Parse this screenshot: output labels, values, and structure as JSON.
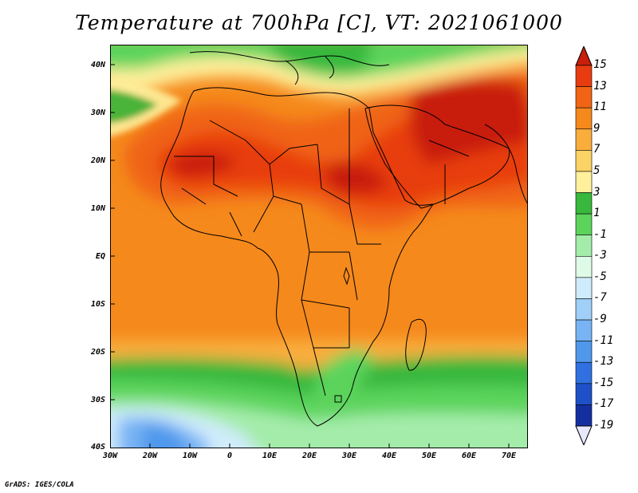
{
  "title": "Temperature at 700hPa [C], VT: 2021061000",
  "footer": "GrADS: IGES/COLA",
  "map": {
    "lat_labels": [
      "40N",
      "30N",
      "20N",
      "10N",
      "EQ",
      "10S",
      "20S",
      "30S",
      "40S"
    ],
    "lon_labels": [
      "30W",
      "20W",
      "10W",
      "0",
      "10E",
      "20E",
      "30E",
      "40E",
      "50E",
      "60E",
      "70E"
    ],
    "lat_range": [
      -40,
      45
    ],
    "lon_range": [
      -30,
      75
    ],
    "field": "temperature_700hPa_C"
  },
  "colorbar": {
    "levels": [
      "15",
      "13",
      "11",
      "9",
      "7",
      "5",
      "3",
      "1",
      "-1",
      "-3",
      "-5",
      "-7",
      "-9",
      "-11",
      "-13",
      "-15",
      "-17",
      "-19"
    ],
    "colors": [
      "#c81e0a",
      "#e83c10",
      "#f06414",
      "#f5891c",
      "#f9ad3c",
      "#fbd264",
      "#fef09c",
      "#38b83c",
      "#5cd45c",
      "#a4ecaa",
      "#e0fae8",
      "#d0ecfc",
      "#a0cff8",
      "#78b4f4",
      "#5098ec",
      "#3070e0",
      "#1e50c8",
      "#1430a0",
      "#0a1c78"
    ],
    "top_arrow_color": "#c81e0a",
    "bottom_arrow_color": "#e8e8ff"
  }
}
